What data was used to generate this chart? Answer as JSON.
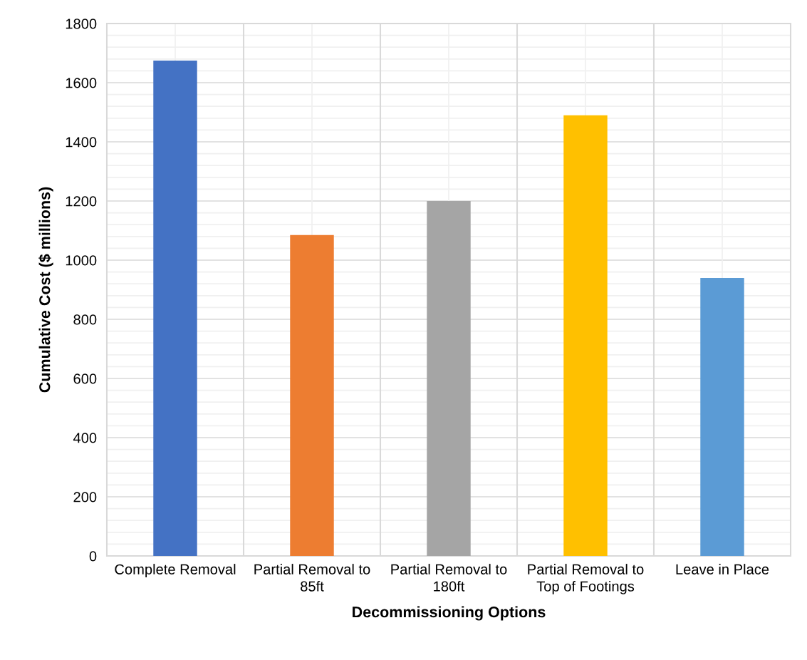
{
  "chart_data": {
    "type": "bar",
    "xlabel": "Decommissioning Options",
    "ylabel": "Cumulative Cost ($ millions)",
    "categories": [
      "Complete Removal",
      "Partial Removal to 85ft",
      "Partial Removal to 180ft",
      "Partial Removal to Top of Footings",
      "Leave in Place"
    ],
    "values": [
      1675,
      1085,
      1200,
      1490,
      940
    ],
    "colors": [
      "#4472c4",
      "#ed7d31",
      "#a5a5a5",
      "#ffc000",
      "#5b9bd5"
    ],
    "ylim": [
      0,
      1800
    ],
    "yticks": [
      0,
      200,
      400,
      600,
      800,
      1000,
      1200,
      1400,
      1600,
      1800
    ],
    "grid": true
  }
}
